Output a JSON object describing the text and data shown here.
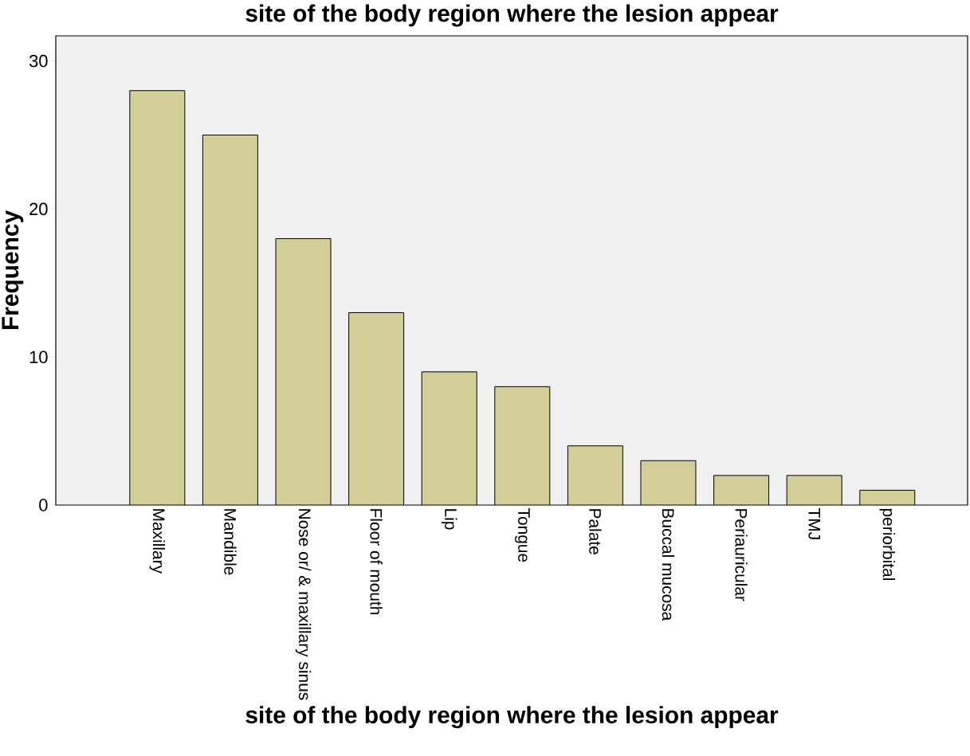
{
  "chart_data": {
    "type": "bar",
    "title": "site of the body region where the lesion appear",
    "xlabel": "site of the body region where the lesion appear",
    "ylabel": "Frequency",
    "categories": [
      "Maxillary",
      "Mandible",
      "Nose or/ & maxillary sinus",
      "Floor of mouth",
      "Lip",
      "Tongue",
      "Palate",
      "Buccal mucosa",
      "Periauricular",
      "TMJ",
      "periorbital"
    ],
    "values": [
      28,
      25,
      18,
      13,
      9,
      8,
      4,
      3,
      2,
      2,
      1
    ],
    "color": "#d3ce97",
    "ylim": [
      0,
      31.7
    ],
    "yticks": [
      0,
      10,
      20,
      30
    ],
    "grid": false
  }
}
